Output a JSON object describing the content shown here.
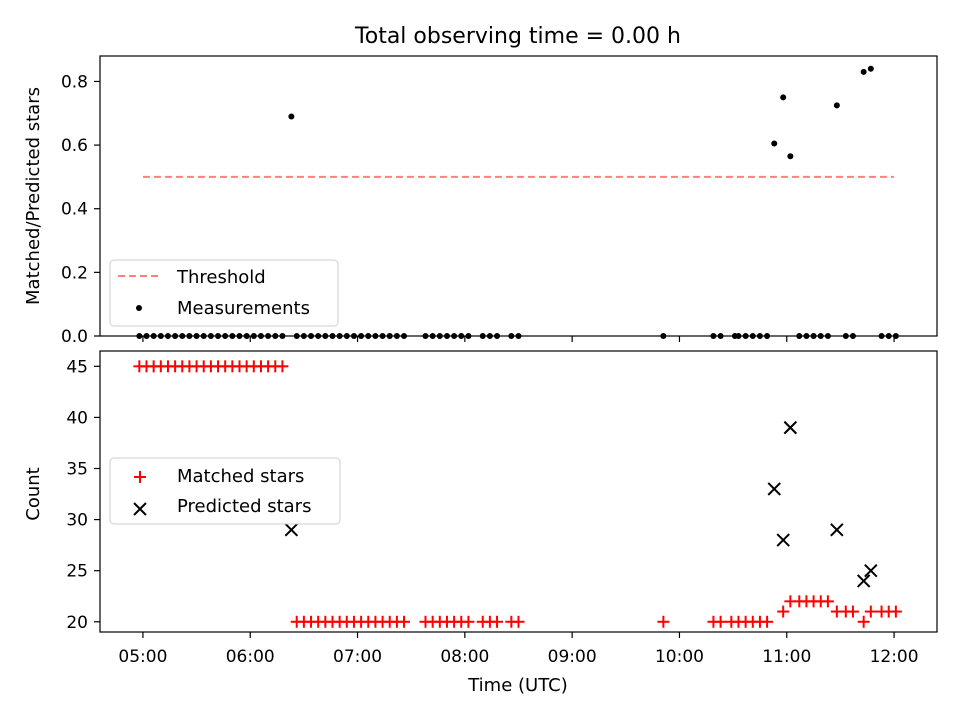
{
  "figure": {
    "title": "Total observing time = 0.00 h"
  },
  "chart_data": [
    {
      "type": "scatter",
      "ylabel": "Matched/Predicted stars",
      "ylim": [
        0,
        0.88
      ],
      "yticks": [
        "0.0",
        "0.2",
        "0.4",
        "0.6",
        "0.8"
      ],
      "threshold": {
        "name": "Threshold",
        "value": 0.5,
        "x_start": "05:00",
        "x_end": "12:00",
        "color": "#ff7f7f"
      },
      "series": [
        {
          "name": "Measurements",
          "color": "#000000",
          "points": [
            [
              "04:58",
              0
            ],
            [
              "05:02",
              0
            ],
            [
              "05:06",
              0
            ],
            [
              "05:10",
              0
            ],
            [
              "05:14",
              0
            ],
            [
              "05:18",
              0
            ],
            [
              "05:22",
              0
            ],
            [
              "05:26",
              0
            ],
            [
              "05:30",
              0
            ],
            [
              "05:34",
              0
            ],
            [
              "05:38",
              0
            ],
            [
              "05:42",
              0
            ],
            [
              "05:46",
              0
            ],
            [
              "05:50",
              0
            ],
            [
              "05:54",
              0
            ],
            [
              "05:58",
              0
            ],
            [
              "06:02",
              0
            ],
            [
              "06:06",
              0
            ],
            [
              "06:10",
              0
            ],
            [
              "06:14",
              0
            ],
            [
              "06:18",
              0
            ],
            [
              "06:23",
              0.69
            ],
            [
              "06:26",
              0
            ],
            [
              "06:30",
              0
            ],
            [
              "06:34",
              0
            ],
            [
              "06:38",
              0
            ],
            [
              "06:42",
              0
            ],
            [
              "06:46",
              0
            ],
            [
              "06:50",
              0
            ],
            [
              "06:54",
              0
            ],
            [
              "06:58",
              0
            ],
            [
              "07:02",
              0
            ],
            [
              "07:06",
              0
            ],
            [
              "07:10",
              0
            ],
            [
              "07:14",
              0
            ],
            [
              "07:18",
              0
            ],
            [
              "07:22",
              0
            ],
            [
              "07:26",
              0
            ],
            [
              "07:38",
              0
            ],
            [
              "07:42",
              0
            ],
            [
              "07:46",
              0
            ],
            [
              "07:50",
              0
            ],
            [
              "07:54",
              0
            ],
            [
              "07:58",
              0
            ],
            [
              "08:02",
              0
            ],
            [
              "08:10",
              0
            ],
            [
              "08:14",
              0
            ],
            [
              "08:18",
              0
            ],
            [
              "08:26",
              0
            ],
            [
              "08:30",
              0
            ],
            [
              "09:51",
              0
            ],
            [
              "10:19",
              0
            ],
            [
              "10:23",
              0
            ],
            [
              "10:31",
              0
            ],
            [
              "10:33",
              0
            ],
            [
              "10:37",
              0
            ],
            [
              "10:41",
              0
            ],
            [
              "10:45",
              0
            ],
            [
              "10:49",
              0
            ],
            [
              "10:53",
              0.605
            ],
            [
              "10:58",
              0.75
            ],
            [
              "11:02",
              0.565
            ],
            [
              "11:07",
              0
            ],
            [
              "11:11",
              0
            ],
            [
              "11:15",
              0
            ],
            [
              "11:19",
              0
            ],
            [
              "11:23",
              0
            ],
            [
              "11:28",
              0.725
            ],
            [
              "11:33",
              0
            ],
            [
              "11:37",
              0
            ],
            [
              "11:43",
              0.83
            ],
            [
              "11:47",
              0.84
            ],
            [
              "11:53",
              0
            ],
            [
              "11:57",
              0
            ],
            [
              "12:01",
              0
            ]
          ]
        }
      ],
      "legend": {
        "placement": "lower left",
        "entries": [
          "Threshold",
          "Measurements"
        ]
      },
      "grid": false
    },
    {
      "type": "scatter",
      "xlabel": "Time (UTC)",
      "ylabel": "Count",
      "ylim": [
        19,
        46.5
      ],
      "yticks": [
        "20",
        "25",
        "30",
        "35",
        "40",
        "45"
      ],
      "xlim": [
        "04:36",
        "12:24"
      ],
      "xticks": [
        "05:00",
        "06:00",
        "07:00",
        "08:00",
        "09:00",
        "10:00",
        "11:00",
        "12:00"
      ],
      "series": [
        {
          "name": "Matched stars",
          "marker": "+",
          "color": "#ff0000",
          "points": [
            [
              "04:58",
              45
            ],
            [
              "05:02",
              45
            ],
            [
              "05:06",
              45
            ],
            [
              "05:10",
              45
            ],
            [
              "05:14",
              45
            ],
            [
              "05:18",
              45
            ],
            [
              "05:22",
              45
            ],
            [
              "05:26",
              45
            ],
            [
              "05:30",
              45
            ],
            [
              "05:34",
              45
            ],
            [
              "05:38",
              45
            ],
            [
              "05:42",
              45
            ],
            [
              "05:46",
              45
            ],
            [
              "05:50",
              45
            ],
            [
              "05:54",
              45
            ],
            [
              "05:58",
              45
            ],
            [
              "06:02",
              45
            ],
            [
              "06:06",
              45
            ],
            [
              "06:10",
              45
            ],
            [
              "06:14",
              45
            ],
            [
              "06:18",
              45
            ],
            [
              "06:26",
              20
            ],
            [
              "06:30",
              20
            ],
            [
              "06:34",
              20
            ],
            [
              "06:38",
              20
            ],
            [
              "06:42",
              20
            ],
            [
              "06:46",
              20
            ],
            [
              "06:50",
              20
            ],
            [
              "06:54",
              20
            ],
            [
              "06:58",
              20
            ],
            [
              "07:02",
              20
            ],
            [
              "07:06",
              20
            ],
            [
              "07:10",
              20
            ],
            [
              "07:14",
              20
            ],
            [
              "07:18",
              20
            ],
            [
              "07:22",
              20
            ],
            [
              "07:26",
              20
            ],
            [
              "07:38",
              20
            ],
            [
              "07:42",
              20
            ],
            [
              "07:46",
              20
            ],
            [
              "07:50",
              20
            ],
            [
              "07:54",
              20
            ],
            [
              "07:58",
              20
            ],
            [
              "08:02",
              20
            ],
            [
              "08:10",
              20
            ],
            [
              "08:14",
              20
            ],
            [
              "08:18",
              20
            ],
            [
              "08:26",
              20
            ],
            [
              "08:30",
              20
            ],
            [
              "09:51",
              20
            ],
            [
              "10:19",
              20
            ],
            [
              "10:23",
              20
            ],
            [
              "10:29",
              20
            ],
            [
              "10:33",
              20
            ],
            [
              "10:37",
              20
            ],
            [
              "10:41",
              20
            ],
            [
              "10:45",
              20
            ],
            [
              "10:49",
              20
            ],
            [
              "10:58",
              21
            ],
            [
              "11:02",
              22
            ],
            [
              "11:07",
              22
            ],
            [
              "11:11",
              22
            ],
            [
              "11:15",
              22
            ],
            [
              "11:19",
              22
            ],
            [
              "11:23",
              22
            ],
            [
              "11:28",
              21
            ],
            [
              "11:33",
              21
            ],
            [
              "11:37",
              21
            ],
            [
              "11:43",
              20
            ],
            [
              "11:47",
              21
            ],
            [
              "11:53",
              21
            ],
            [
              "11:57",
              21
            ],
            [
              "12:01",
              21
            ]
          ]
        },
        {
          "name": "Predicted stars",
          "marker": "x",
          "color": "#000000",
          "points": [
            [
              "06:23",
              29
            ],
            [
              "10:53",
              33
            ],
            [
              "10:58",
              28
            ],
            [
              "11:02",
              39
            ],
            [
              "11:28",
              29
            ],
            [
              "11:43",
              24
            ],
            [
              "11:47",
              25
            ]
          ]
        }
      ],
      "legend": {
        "placement": "center left",
        "entries": [
          "Matched stars",
          "Predicted stars"
        ]
      },
      "grid": false
    }
  ]
}
